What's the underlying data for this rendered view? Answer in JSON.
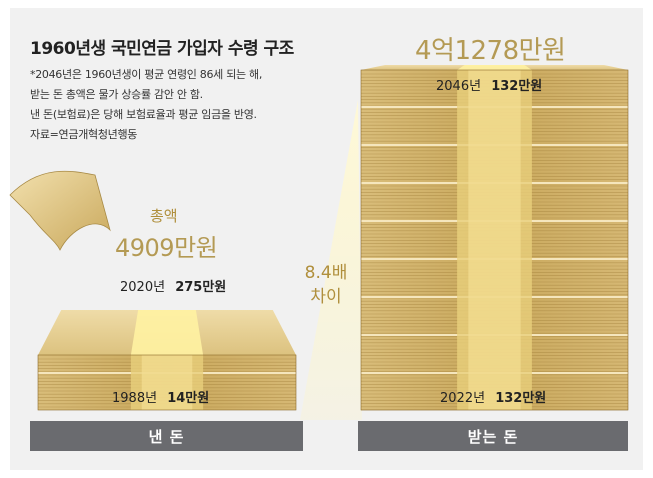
{
  "title": "1960년생 국민연금 가입자 수령 구조",
  "notes": [
    "*2046년은 1960년생이 평균 연령인 86세 되는 해,",
    " 받는 돈 총액은 물가 상승률 감안 안 함.",
    " 낸 돈(보험료)은 당해 보험료율과 평균 임금을 반영.",
    " 자료=연금개혁청년행동"
  ],
  "chart_data": {
    "type": "bar",
    "categories": [
      "낸 돈",
      "받는 돈"
    ],
    "series": [
      {
        "values": [
          4909,
          41278
        ]
      }
    ],
    "unit": "만원",
    "paid": {
      "total_label": "총액",
      "total": "4909만원",
      "top": {
        "year": "2020년",
        "amount": "275만원"
      },
      "bottom": {
        "year": "1988년",
        "amount": "14만원"
      }
    },
    "received": {
      "total": "4억1278만원",
      "top": {
        "year": "2046년",
        "amount": "132만원"
      },
      "bottom": {
        "year": "2022년",
        "amount": "132만원"
      }
    },
    "gap": {
      "line1": "8.4배",
      "line2": "차이"
    }
  },
  "colors": {
    "gold_light": "#e7cf95",
    "gold_mid": "#c9a85c",
    "gold_dark": "#8b6a2a",
    "highlight": "#fff3a6",
    "bg_panel": "#f0f0f0",
    "button": "#6a6b6f"
  }
}
